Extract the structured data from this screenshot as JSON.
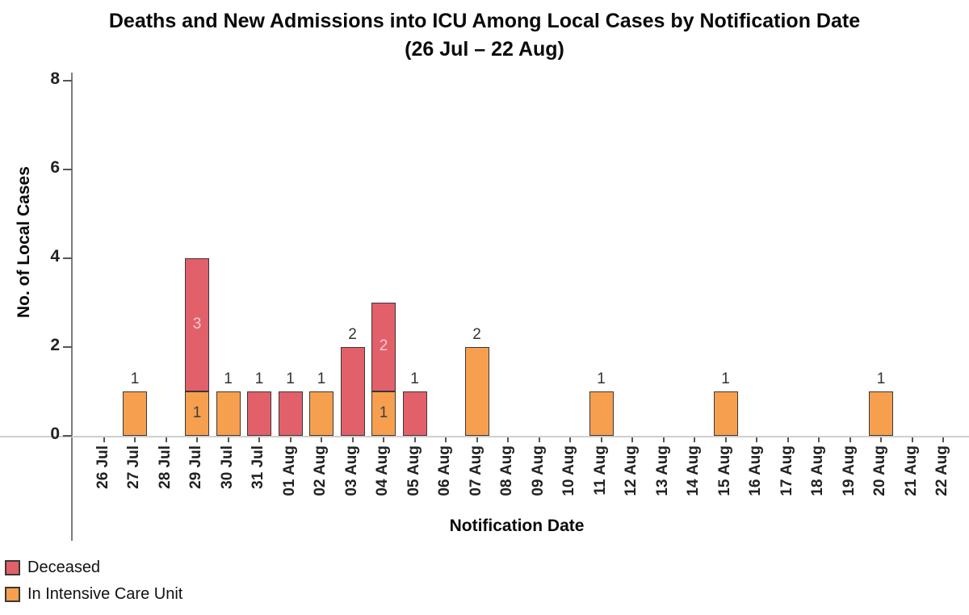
{
  "chart_data": {
    "type": "bar",
    "stacked": true,
    "title": "Deaths and New Admissions into ICU Among Local Cases by Notification Date",
    "subtitle": "(26 Jul – 22 Aug)",
    "xlabel": "Notification Date",
    "ylabel": "No. of Local Cases",
    "ylim": [
      0,
      8
    ],
    "yticks": [
      0,
      2,
      4,
      6,
      8
    ],
    "grid": false,
    "legend_position": "bottom-left",
    "bar_border_color": "#383838",
    "categories": [
      "26 Jul",
      "27 Jul",
      "28 Jul",
      "29 Jul",
      "30 Jul",
      "31 Jul",
      "01 Aug",
      "02 Aug",
      "03 Aug",
      "04 Aug",
      "05 Aug",
      "06 Aug",
      "07 Aug",
      "08 Aug",
      "09 Aug",
      "10 Aug",
      "11 Aug",
      "12 Aug",
      "13 Aug",
      "14 Aug",
      "15 Aug",
      "16 Aug",
      "17 Aug",
      "18 Aug",
      "19 Aug",
      "20 Aug",
      "21 Aug",
      "22 Aug"
    ],
    "series": [
      {
        "name": "Deceased",
        "color": "#E2606A",
        "label_color": "#F6CDD0",
        "values": [
          0,
          0,
          0,
          3,
          0,
          1,
          1,
          0,
          2,
          2,
          1,
          0,
          0,
          0,
          0,
          0,
          0,
          0,
          0,
          0,
          0,
          0,
          0,
          0,
          0,
          0,
          0,
          0
        ]
      },
      {
        "name": "In Intensive Care Unit",
        "color": "#F6A04F",
        "label_color": "#3E3E3E",
        "values": [
          0,
          1,
          0,
          1,
          1,
          0,
          0,
          1,
          0,
          1,
          0,
          0,
          2,
          0,
          0,
          0,
          1,
          0,
          0,
          0,
          1,
          0,
          0,
          0,
          0,
          1,
          0,
          0
        ]
      }
    ],
    "stack_order": [
      "In Intensive Care Unit",
      "Deceased"
    ],
    "value_label_rule": "totals above single-segment bars; per-segment labels inside stacked bars"
  }
}
